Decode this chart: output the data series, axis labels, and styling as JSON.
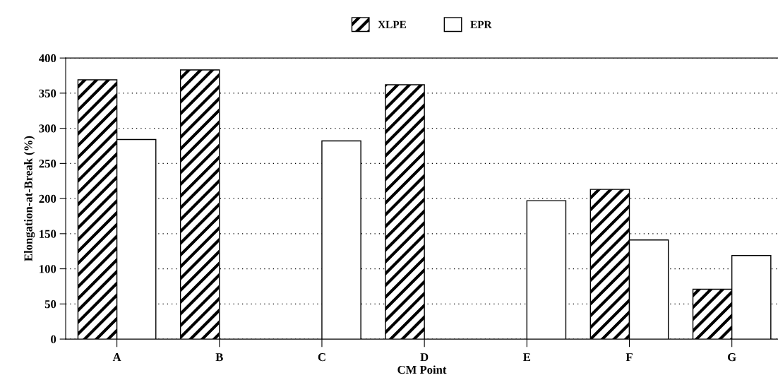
{
  "chart_data": {
    "type": "bar",
    "xlabel": "CM Point",
    "ylabel": "Elongation-at-Break (%)",
    "categories": [
      "A",
      "B",
      "C",
      "D",
      "E",
      "F",
      "G"
    ],
    "series": [
      {
        "name": "XLPE",
        "color": "#000000",
        "values": [
          369,
          383,
          null,
          362,
          null,
          213,
          71
        ]
      },
      {
        "name": "EPR",
        "color": "#ffffff",
        "values": [
          284,
          null,
          282,
          null,
          197,
          141,
          119
        ]
      }
    ],
    "ylim": [
      0,
      400
    ],
    "yticks": [
      0,
      50,
      100,
      150,
      200,
      250,
      300,
      350,
      400
    ],
    "grid": "y",
    "legend": "top",
    "line_style": "dotted"
  }
}
